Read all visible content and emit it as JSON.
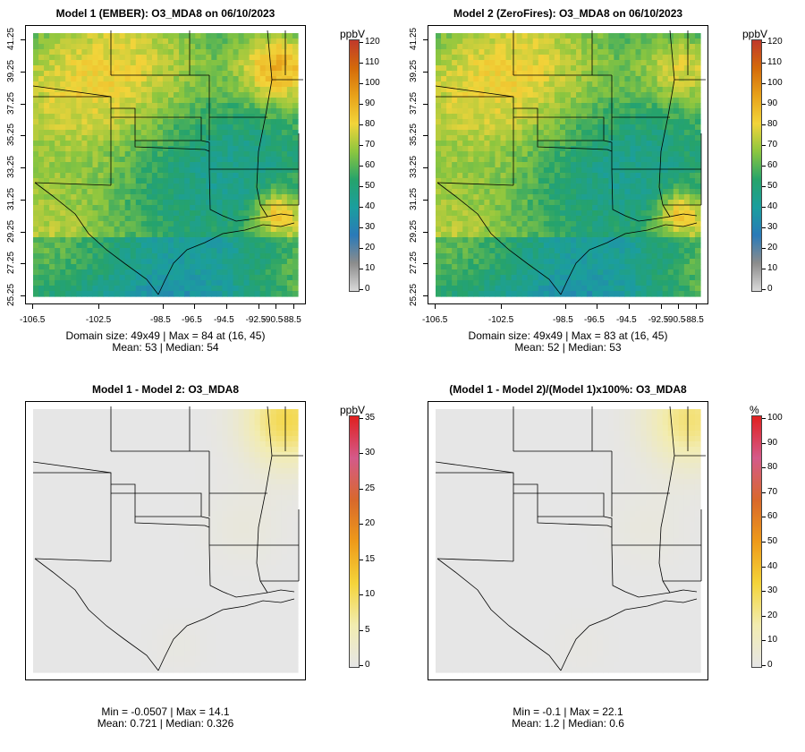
{
  "panels": [
    {
      "id": "p1",
      "title": "Model 1 (EMBER): O3_MDA8 on 06/10/2023",
      "stats_line1": "Domain size: 49x49 | Max = 84 at (16, 45)",
      "stats_line2": "Mean: 53 |  Median: 54",
      "unit": "ppbV",
      "colorbar_ticks": [
        "120",
        "110",
        "100",
        "90",
        "80",
        "70",
        "60",
        "50",
        "40",
        "30",
        "20",
        "10",
        "0"
      ],
      "map_style": "ozone"
    },
    {
      "id": "p2",
      "title": "Model 2 (ZeroFires): O3_MDA8 on 06/10/2023",
      "stats_line1": "Domain size: 49x49 | Max = 83 at (16, 45)",
      "stats_line2": "Mean: 52 |  Median: 53",
      "unit": "ppbV",
      "colorbar_ticks": [
        "120",
        "110",
        "100",
        "90",
        "80",
        "70",
        "60",
        "50",
        "40",
        "30",
        "20",
        "10",
        "0"
      ],
      "map_style": "ozone"
    },
    {
      "id": "p3",
      "title": "Model 1 - Model 2: O3_MDA8",
      "stats_line1": "Min = -0.0507 | Max = 14.1",
      "stats_line2": "Mean: 0.721 |  Median: 0.326",
      "unit": "ppbV",
      "colorbar_ticks": [
        "35",
        "30",
        "25",
        "20",
        "15",
        "10",
        "5",
        "0"
      ],
      "map_style": "diff"
    },
    {
      "id": "p4",
      "title": "(Model 1 - Model 2)/(Model 1)x100%: O3_MDA8",
      "stats_line1": "Min = -0.1 | Max = 22.1",
      "stats_line2": "Mean: 1.2 |  Median: 0.6",
      "unit": "%",
      "colorbar_ticks": [
        "100",
        "90",
        "80",
        "70",
        "60",
        "50",
        "40",
        "30",
        "20",
        "10",
        "0"
      ],
      "map_style": "diff"
    }
  ],
  "lat_ticks": [
    "25.25",
    "27.25",
    "29.25",
    "31.25",
    "33.25",
    "35.25",
    "37.25",
    "39.25",
    "41.25"
  ],
  "lon_ticks": [
    "-106.5",
    "-102.5",
    "-98.5",
    "-96.5",
    "-94.5",
    "-92.5",
    "-90.5",
    "-88.5"
  ],
  "colors": {
    "ozone_ramp": [
      "#d9d9d9",
      "#8c8c8c",
      "#2a7ab8",
      "#1b9e9e",
      "#26a36b",
      "#8cc63f",
      "#f2d43a",
      "#e8a21a",
      "#d46a0a",
      "#c0392b"
    ],
    "diff_ramp": [
      "#e6e6e6",
      "#f2ecb0",
      "#f4d43a",
      "#ee9a1a",
      "#d8682c",
      "#d45a8a",
      "#e02020"
    ],
    "border": "#000000"
  }
}
